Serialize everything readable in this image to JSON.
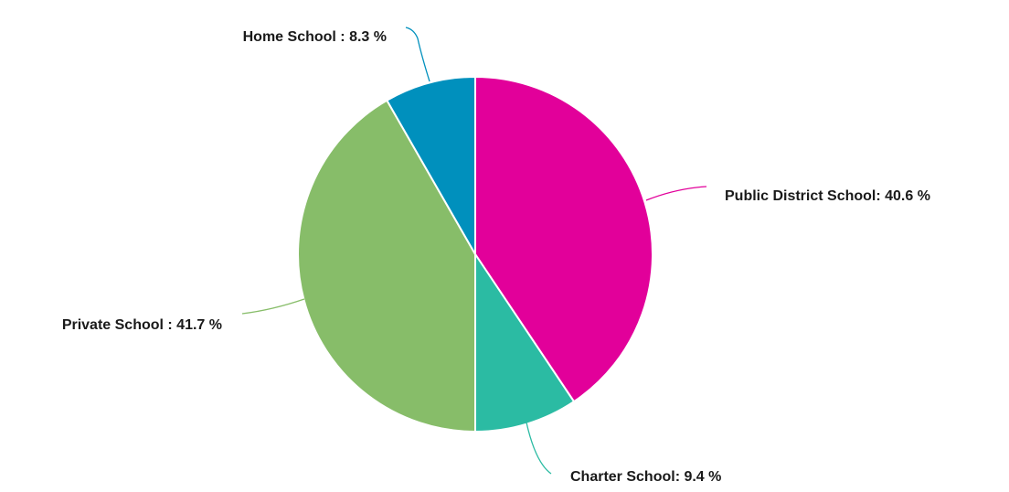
{
  "chart_data": {
    "type": "pie",
    "title": "",
    "slices": [
      {
        "name": "Public District School",
        "value": 40.6,
        "label": "Public District School: 40.6 %",
        "color": "#e2009a"
      },
      {
        "name": "Charter School",
        "value": 9.4,
        "label": "Charter School: 9.4 %",
        "color": "#2bbba3"
      },
      {
        "name": "Private School",
        "value": 41.7,
        "label": "Private School : 41.7 %",
        "color": "#87bd69"
      },
      {
        "name": "Home School",
        "value": 8.3,
        "label": "Home School : 8.3 %",
        "color": "#0090bd"
      }
    ],
    "start_angle": "12 o'clock",
    "direction": "clockwise",
    "legend": "none"
  }
}
